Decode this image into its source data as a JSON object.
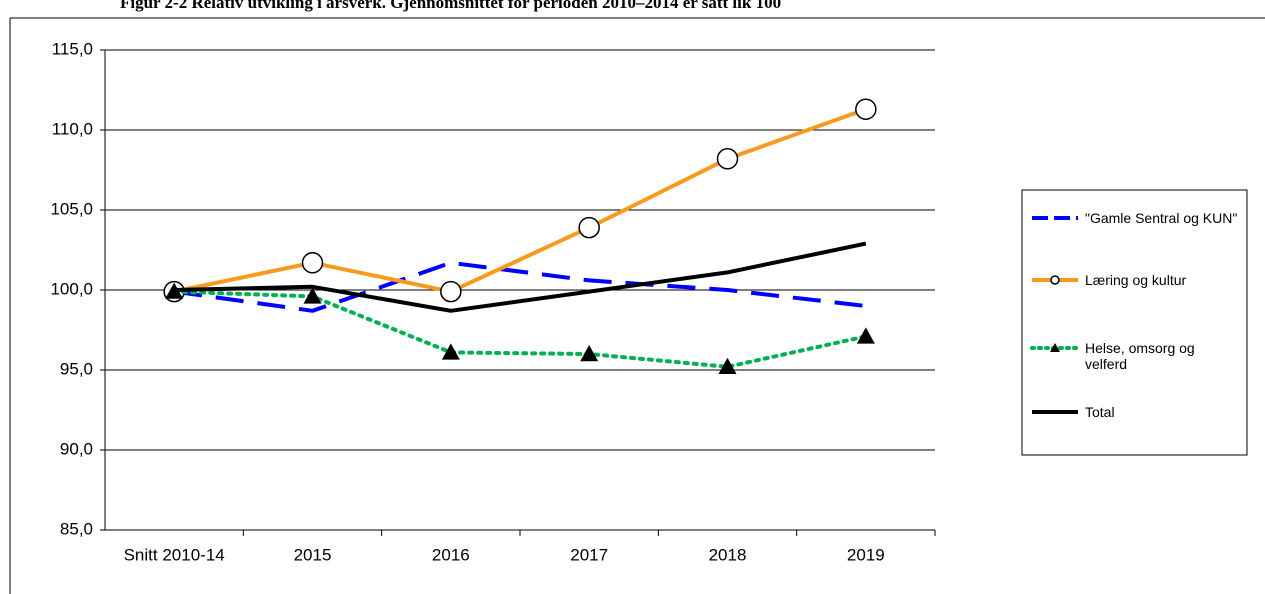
{
  "chart_data": {
    "type": "line",
    "title": "Figur 2-2 Relativ utvikling i årsverk. Gjennomsnittet for perioden 2010–2014 er satt lik 100",
    "categories": [
      "Snitt 2010-14",
      "2015",
      "2016",
      "2017",
      "2018",
      "2019"
    ],
    "ylim": [
      85,
      115
    ],
    "yticks": [
      {
        "value": 85,
        "label": "85,0"
      },
      {
        "value": 90,
        "label": "90,0"
      },
      {
        "value": 95,
        "label": "95,0"
      },
      {
        "value": 100,
        "label": "100,0"
      },
      {
        "value": 105,
        "label": "105,0"
      },
      {
        "value": 110,
        "label": "110,0"
      },
      {
        "value": 115,
        "label": "115,0"
      }
    ],
    "grid": true,
    "series": [
      {
        "name": "\"Gamle Sentral og KUN\"",
        "color": "#0000ff",
        "dash": "dashed",
        "marker": "none",
        "values": [
          99.9,
          98.7,
          101.7,
          100.6,
          100.0,
          99.0
        ]
      },
      {
        "name": "Læring og kultur",
        "color": "#f79a1e",
        "dash": "solid",
        "marker": "circle",
        "values": [
          99.9,
          101.7,
          99.9,
          103.9,
          108.2,
          111.3
        ]
      },
      {
        "name": "Helse, omsorg og velferd",
        "color": "#00b050",
        "dash": "dotted",
        "marker": "triangle",
        "values": [
          99.9,
          99.6,
          96.1,
          96.0,
          95.2,
          97.1
        ]
      },
      {
        "name": "Total",
        "color": "#000000",
        "dash": "solid",
        "marker": "none",
        "values": [
          100.0,
          100.2,
          98.7,
          99.9,
          101.1,
          102.9
        ]
      }
    ]
  }
}
